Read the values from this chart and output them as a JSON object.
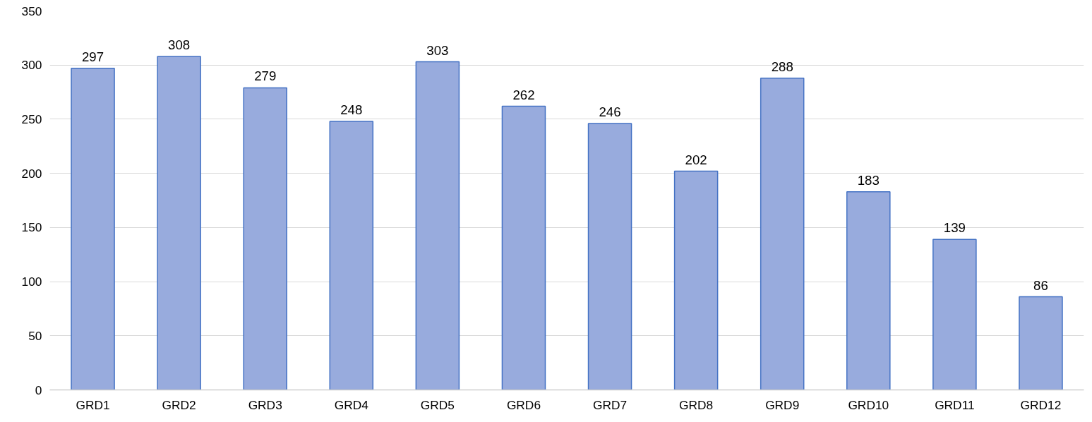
{
  "chart_data": {
    "type": "bar",
    "categories": [
      "GRD1",
      "GRD2",
      "GRD3",
      "GRD4",
      "GRD5",
      "GRD6",
      "GRD7",
      "GRD8",
      "GRD9",
      "GRD10",
      "GRD11",
      "GRD12"
    ],
    "values": [
      297,
      308,
      279,
      248,
      303,
      262,
      246,
      202,
      288,
      183,
      139,
      86
    ],
    "color": "#98abdd",
    "ylim": [
      0,
      350
    ],
    "yticks": [
      0,
      50,
      100,
      150,
      200,
      250,
      300,
      350
    ],
    "grid": "y",
    "data_labels": true
  }
}
